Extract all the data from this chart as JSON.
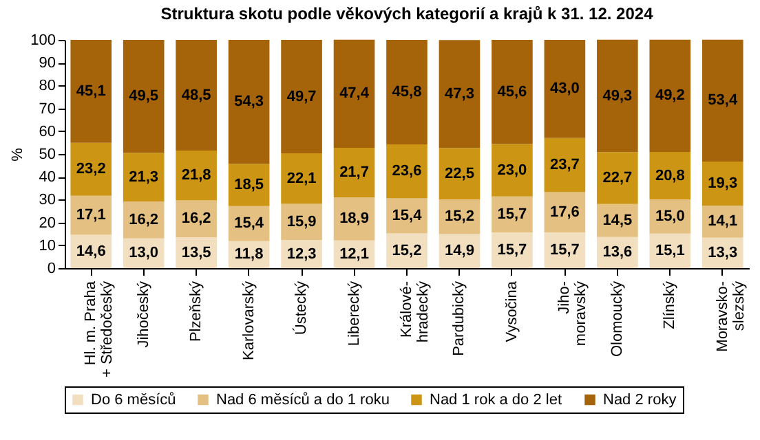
{
  "chart_data": {
    "type": "bar",
    "title": "Struktura skotu podle věkových kategorií a krajů k 31. 12. 2024",
    "ylabel": "%",
    "categories": [
      "Hl. m. Praha\n+ Středočeský",
      "Jihočeský",
      "Plzeňský",
      "Karlovarský",
      "Ústecký",
      "Liberecký",
      "Králové-\nhradecký",
      "Pardubický",
      "Vysočina",
      "Jiho-\nmoravský",
      "Olomoucký",
      "Zlínský",
      "Moravsko-\nslezský"
    ],
    "series": [
      {
        "name": "Do 6 měsíců",
        "color": "#f2dfbf",
        "values": [
          14.6,
          13.0,
          13.5,
          11.8,
          12.3,
          12.1,
          15.2,
          14.9,
          15.7,
          15.7,
          13.6,
          15.1,
          13.3
        ],
        "value_labels": [
          "14,6",
          "13,0",
          "13,5",
          "11,8",
          "12,3",
          "12,1",
          "15,2",
          "14,9",
          "15,7",
          "15,7",
          "13,6",
          "15,1",
          "13,3"
        ]
      },
      {
        "name": "Nad 6 měsíců a do 1 roku",
        "color": "#e5c083",
        "values": [
          17.1,
          16.2,
          16.2,
          15.4,
          15.9,
          18.9,
          15.4,
          15.2,
          15.7,
          17.6,
          14.5,
          15.0,
          14.1
        ],
        "value_labels": [
          "17,1",
          "16,2",
          "16,2",
          "15,4",
          "15,9",
          "18,9",
          "15,4",
          "15,2",
          "15,7",
          "17,6",
          "14,5",
          "15,0",
          "14,1"
        ]
      },
      {
        "name": "Nad 1 rok a do 2 let",
        "color": "#cc9614",
        "values": [
          23.2,
          21.3,
          21.8,
          18.5,
          22.1,
          21.7,
          23.6,
          22.5,
          23.0,
          23.7,
          22.7,
          20.8,
          19.3
        ],
        "value_labels": [
          "23,2",
          "21,3",
          "21,8",
          "18,5",
          "22,1",
          "21,7",
          "23,6",
          "22,5",
          "23,0",
          "23,7",
          "22,7",
          "20,8",
          "19,3"
        ]
      },
      {
        "name": "Nad 2 roky",
        "color": "#a6640a",
        "values": [
          45.1,
          49.5,
          48.5,
          54.3,
          49.7,
          47.4,
          45.8,
          47.3,
          45.6,
          43.0,
          49.3,
          49.2,
          53.4
        ],
        "value_labels": [
          "45,1",
          "49,5",
          "48,5",
          "54,3",
          "49,7",
          "47,4",
          "45,8",
          "47,3",
          "45,6",
          "43,0",
          "49,3",
          "49,2",
          "53,4"
        ]
      }
    ],
    "stacked": true,
    "ylim": [
      0,
      100
    ],
    "yticks": [
      0,
      10,
      20,
      30,
      40,
      50,
      60,
      70,
      80,
      90,
      100
    ],
    "legend": "bottom",
    "grid": false
  }
}
